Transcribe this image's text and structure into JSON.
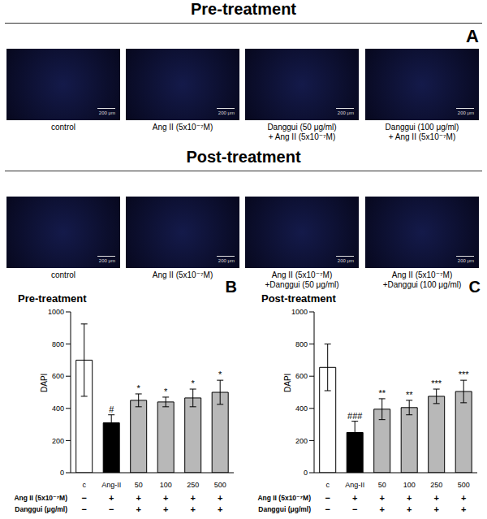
{
  "panel_a": {
    "label": "A",
    "scale_bar": "200 μm",
    "sections": [
      {
        "title": "Pre-treatment",
        "captions": [
          [
            "control"
          ],
          [
            "Ang II (5x10⁻⁷M)"
          ],
          [
            "Danggui (50 μg/ml)",
            "+ Ang II (5x10⁻⁷M)"
          ],
          [
            "Danggui (100 μg/ml)",
            "+ Ang II (5x10⁻⁷M)"
          ]
        ]
      },
      {
        "title": "Post-treatment",
        "captions": [
          [
            "control"
          ],
          [
            "Ang II (5x10⁻⁷M)"
          ],
          [
            "Ang II (5x10⁻⁷M)",
            "+Danggui (50 μg/ml)"
          ],
          [
            "Ang II (5x10⁻⁷M)",
            "+Danggui (100 μg/ml)"
          ]
        ]
      }
    ]
  },
  "chart_data": [
    {
      "type": "bar",
      "panel_label": "B",
      "title": "Pre-treatment",
      "ylabel": "DAPI",
      "categories": [
        "c",
        "Ang-II",
        "50",
        "100",
        "250",
        "500"
      ],
      "values": [
        700,
        310,
        450,
        440,
        465,
        500
      ],
      "errors": [
        225,
        50,
        40,
        30,
        55,
        75
      ],
      "significance": [
        null,
        "#",
        "*",
        "*",
        "*",
        "*"
      ],
      "colors": [
        "#ffffff",
        "#000000",
        "#b8b8b8",
        "#b8b8b8",
        "#b8b8b8",
        "#b8b8b8"
      ],
      "ylim": [
        0,
        1000
      ],
      "yticks": [
        0,
        200,
        400,
        600,
        800,
        1000
      ],
      "grid": false,
      "rows": [
        {
          "label": "Ang II (5x10⁻⁷M)",
          "signs": [
            "−",
            "+",
            "+",
            "+",
            "+",
            "+"
          ]
        },
        {
          "label": "Danggui (μg/ml)",
          "signs": [
            "−",
            "−",
            "+",
            "+",
            "+",
            "+"
          ]
        }
      ]
    },
    {
      "type": "bar",
      "panel_label": "C",
      "title": "Post-treatment",
      "ylabel": "DAPI",
      "categories": [
        "c",
        "Ang-II",
        "50",
        "100",
        "250",
        "500"
      ],
      "values": [
        655,
        250,
        395,
        405,
        475,
        505
      ],
      "errors": [
        145,
        70,
        65,
        45,
        45,
        70
      ],
      "significance": [
        null,
        "###",
        "**",
        "**",
        "***",
        "***"
      ],
      "colors": [
        "#ffffff",
        "#000000",
        "#b8b8b8",
        "#b8b8b8",
        "#b8b8b8",
        "#b8b8b8"
      ],
      "ylim": [
        0,
        1000
      ],
      "yticks": [
        0,
        200,
        400,
        600,
        800,
        1000
      ],
      "grid": false,
      "rows": [
        {
          "label": "Ang II (5x10⁻⁷M)",
          "signs": [
            "−",
            "+",
            "+",
            "+",
            "+",
            "+"
          ]
        },
        {
          "label": "Danggui (μg/ml)",
          "signs": [
            "−",
            "−",
            "+",
            "+",
            "+",
            "+"
          ]
        }
      ]
    }
  ]
}
